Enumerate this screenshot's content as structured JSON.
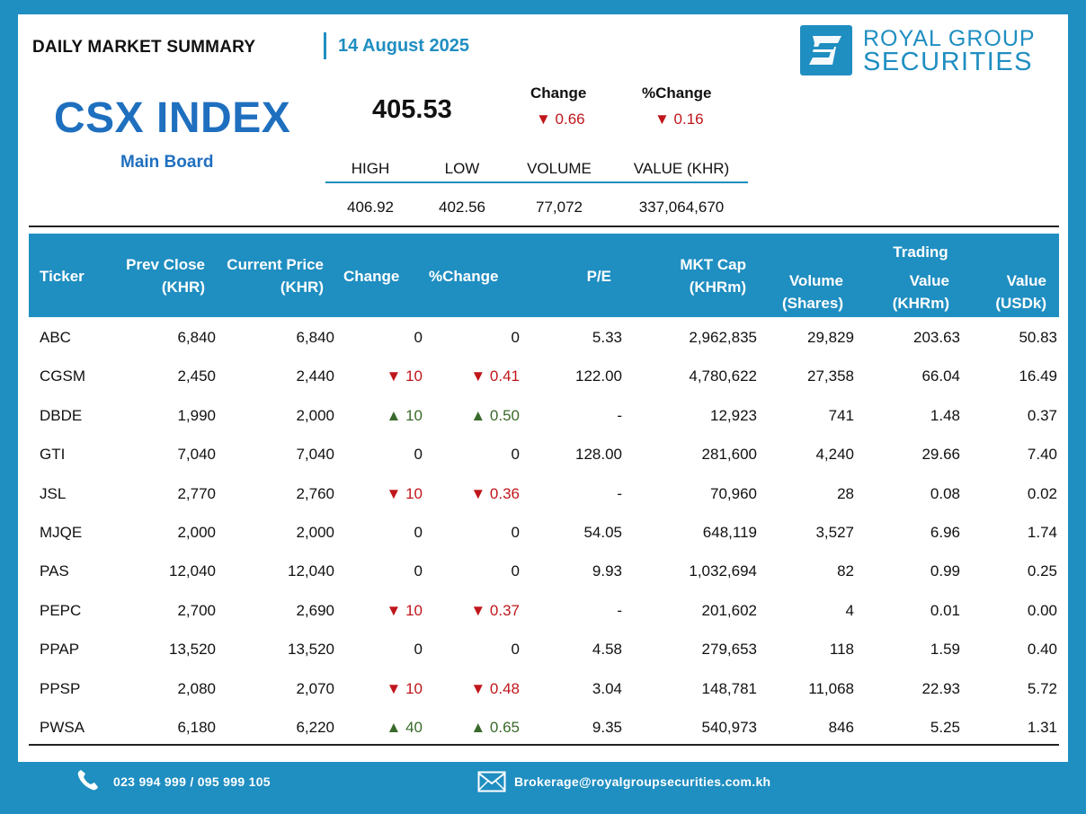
{
  "header": {
    "title": "DAILY MARKET SUMMARY",
    "date": "14 August 2025",
    "brand_line1": "ROYAL GROUP",
    "brand_line2": "SECURITIES",
    "brand_color": "#1f8ec1"
  },
  "index": {
    "name": "CSX INDEX",
    "board": "Main Board",
    "value": "405.53",
    "change_label": "Change",
    "pct_change_label": "%Change",
    "change": "▼ 0.66",
    "pct_change": "▼ 0.16",
    "stats_headers": [
      "HIGH",
      "LOW",
      "VOLUME",
      "VALUE (KHR)"
    ],
    "stats_values": [
      "406.92",
      "402.56",
      "77,072",
      "337,064,670"
    ]
  },
  "table": {
    "headers": {
      "ticker": "Ticker",
      "prev_close": "Prev Close",
      "prev_close_unit": "(KHR)",
      "current_price": "Current Price",
      "current_price_unit": "(KHR)",
      "change": "Change",
      "pct_change": "%Change",
      "pe": "P/E",
      "mkt_cap": "MKT Cap",
      "mkt_cap_unit": "(KHRm)",
      "volume": "Volume",
      "volume_unit": "(Shares)",
      "trading": "Trading",
      "value": "Value",
      "value_khr_unit": "(KHRm)",
      "value_usd": "Value",
      "value_usd_unit": "(USDk)"
    },
    "rows": [
      {
        "ticker": "ABC",
        "prev": "6,840",
        "cur": "6,840",
        "chg": "0",
        "pct": "0",
        "dir": "",
        "pe": "5.33",
        "cap": "2,962,835",
        "vol": "29,829",
        "vkhr": "203.63",
        "vusd": "50.83"
      },
      {
        "ticker": "CGSM",
        "prev": "2,450",
        "cur": "2,440",
        "chg": "▼ 10",
        "pct": "▼ 0.41",
        "dir": "dn",
        "pe": "122.00",
        "cap": "4,780,622",
        "vol": "27,358",
        "vkhr": "66.04",
        "vusd": "16.49"
      },
      {
        "ticker": "DBDE",
        "prev": "1,990",
        "cur": "2,000",
        "chg": "▲ 10",
        "pct": "▲ 0.50",
        "dir": "up",
        "pe": "-",
        "cap": "12,923",
        "vol": "741",
        "vkhr": "1.48",
        "vusd": "0.37"
      },
      {
        "ticker": "GTI",
        "prev": "7,040",
        "cur": "7,040",
        "chg": "0",
        "pct": "0",
        "dir": "",
        "pe": "128.00",
        "cap": "281,600",
        "vol": "4,240",
        "vkhr": "29.66",
        "vusd": "7.40"
      },
      {
        "ticker": "JSL",
        "prev": "2,770",
        "cur": "2,760",
        "chg": "▼ 10",
        "pct": "▼ 0.36",
        "dir": "dn",
        "pe": "-",
        "cap": "70,960",
        "vol": "28",
        "vkhr": "0.08",
        "vusd": "0.02"
      },
      {
        "ticker": "MJQE",
        "prev": "2,000",
        "cur": "2,000",
        "chg": "0",
        "pct": "0",
        "dir": "",
        "pe": "54.05",
        "cap": "648,119",
        "vol": "3,527",
        "vkhr": "6.96",
        "vusd": "1.74"
      },
      {
        "ticker": "PAS",
        "prev": "12,040",
        "cur": "12,040",
        "chg": "0",
        "pct": "0",
        "dir": "",
        "pe": "9.93",
        "cap": "1,032,694",
        "vol": "82",
        "vkhr": "0.99",
        "vusd": "0.25"
      },
      {
        "ticker": "PEPC",
        "prev": "2,700",
        "cur": "2,690",
        "chg": "▼ 10",
        "pct": "▼ 0.37",
        "dir": "dn",
        "pe": "-",
        "cap": "201,602",
        "vol": "4",
        "vkhr": "0.01",
        "vusd": "0.00"
      },
      {
        "ticker": "PPAP",
        "prev": "13,520",
        "cur": "13,520",
        "chg": "0",
        "pct": "0",
        "dir": "",
        "pe": "4.58",
        "cap": "279,653",
        "vol": "118",
        "vkhr": "1.59",
        "vusd": "0.40"
      },
      {
        "ticker": "PPSP",
        "prev": "2,080",
        "cur": "2,070",
        "chg": "▼ 10",
        "pct": "▼ 0.48",
        "dir": "dn",
        "pe": "3.04",
        "cap": "148,781",
        "vol": "11,068",
        "vkhr": "22.93",
        "vusd": "5.72"
      },
      {
        "ticker": "PWSA",
        "prev": "6,180",
        "cur": "6,220",
        "chg": "▲ 40",
        "pct": "▲ 0.65",
        "dir": "up",
        "pe": "9.35",
        "cap": "540,973",
        "vol": "846",
        "vkhr": "5.25",
        "vusd": "1.31"
      }
    ]
  },
  "footer": {
    "phone": "023 994 999 / 095 999 105",
    "email": "Brokerage@royalgroupsecurities.com.kh",
    "phone_icon": "phone-icon",
    "email_icon": "envelope-icon"
  }
}
